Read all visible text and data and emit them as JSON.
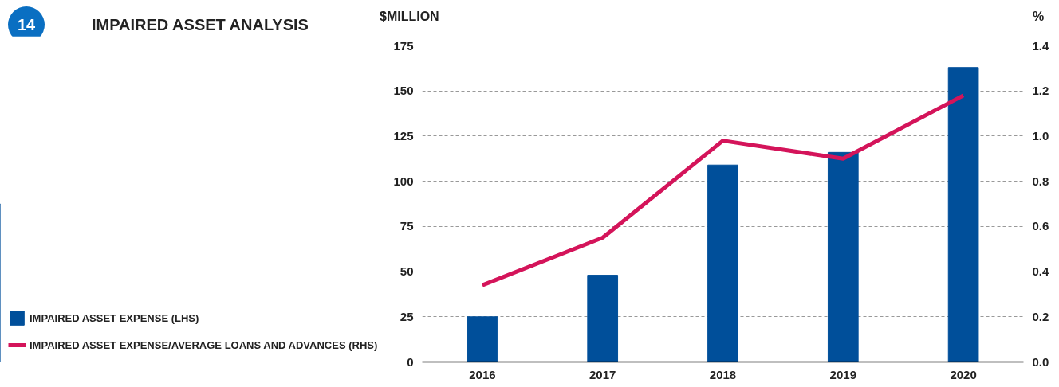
{
  "chart_data": {
    "type": "bar",
    "title": "IMPAIRED ASSET ANALYSIS",
    "annotations": [
      "14"
    ],
    "categories": [
      "2016",
      "2017",
      "2018",
      "2019",
      "2020"
    ],
    "ylabel": "$MILLION",
    "y2label": "%",
    "ylim": [
      0,
      175
    ],
    "yticks": [
      0,
      25,
      50,
      75,
      100,
      125,
      150,
      175
    ],
    "y2lim": [
      0,
      1.4
    ],
    "y2ticks": [
      {
        "value": 0,
        "label": "0.0"
      },
      {
        "value": 0.2,
        "label": "0.2"
      },
      {
        "value": 0.4,
        "label": "0.4"
      },
      {
        "value": 0.6,
        "label": "0.6"
      },
      {
        "value": 0.8,
        "label": "0.8"
      },
      {
        "value": 1.0,
        "label": "1.0"
      },
      {
        "value": 1.2,
        "label": "1.2"
      },
      {
        "value": 1.4,
        "label": "1.4"
      }
    ],
    "series": [
      {
        "name": "IMPAIRED ASSET EXPENSE (LHS)",
        "color": "#004f9a",
        "values": [
          25,
          48,
          109,
          116,
          163
        ]
      },
      {
        "name": "IMPAIRED ASSET EXPENSE/AVERAGE LOANS AND ADVANCES (RHS)",
        "type": "line",
        "axis": "y2",
        "color": "#d4145a",
        "values": [
          0.34,
          0.55,
          0.98,
          0.9,
          1.18
        ]
      }
    ],
    "grid": "y",
    "legend": "left",
    "line_style": "solid",
    "marker": "none"
  }
}
